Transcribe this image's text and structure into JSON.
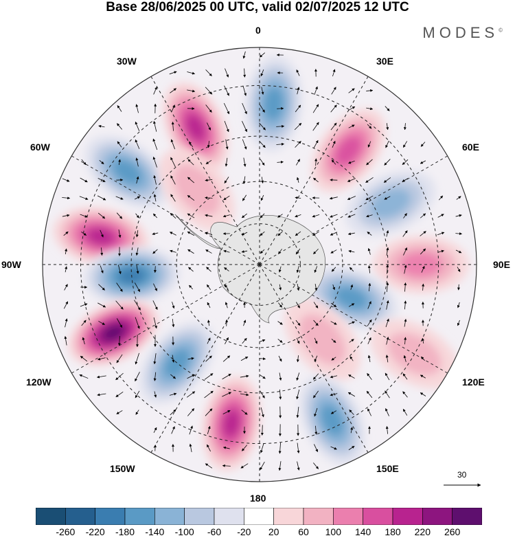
{
  "header": {
    "title": "Base 28/06/2025 00 UTC, valid 02/07/2025 12 UTC",
    "brand": "MODES",
    "brand_mark": "©"
  },
  "map": {
    "projection": "south-polar-stereographic",
    "longitude_labels": {
      "top": "0",
      "upper_left_30": "30W",
      "upper_right_30": "30E",
      "left_60": "60W",
      "right_60": "60E",
      "left_90": "90W",
      "right_90": "90E",
      "lower_left_120": "120W",
      "lower_right_120": "120E",
      "lower_left_150": "150W",
      "lower_right_150": "150E",
      "bottom": "180"
    },
    "anomaly_centers": [
      {
        "lon": -25,
        "lat": -38,
        "sign": "positive",
        "value": 180
      },
      {
        "lon": 5,
        "lat": -35,
        "sign": "negative",
        "value": -140
      },
      {
        "lon": 38,
        "lat": -40,
        "sign": "positive",
        "value": 140
      },
      {
        "lon": -55,
        "lat": -35,
        "sign": "negative",
        "value": -140
      },
      {
        "lon": -40,
        "lat": -55,
        "sign": "positive",
        "value": 60
      },
      {
        "lon": 65,
        "lat": -40,
        "sign": "negative",
        "value": -100
      },
      {
        "lon": -80,
        "lat": -35,
        "sign": "positive",
        "value": 180
      },
      {
        "lon": 90,
        "lat": -35,
        "sign": "positive",
        "value": 100
      },
      {
        "lon": -95,
        "lat": -45,
        "sign": "negative",
        "value": -180
      },
      {
        "lon": 110,
        "lat": -55,
        "sign": "negative",
        "value": -140
      },
      {
        "lon": -115,
        "lat": -35,
        "sign": "positive",
        "value": 260
      },
      {
        "lon": 140,
        "lat": -55,
        "sign": "positive",
        "value": 60
      },
      {
        "lon": -140,
        "lat": -45,
        "sign": "negative",
        "value": -140
      },
      {
        "lon": 120,
        "lat": -30,
        "sign": "positive",
        "value": 60
      },
      {
        "lon": -170,
        "lat": -35,
        "sign": "positive",
        "value": 180
      },
      {
        "lon": 155,
        "lat": -32,
        "sign": "negative",
        "value": -140
      }
    ],
    "vector_reference": {
      "label": "30",
      "value": 30
    }
  },
  "colorbar": {
    "colors": [
      "#1a4e74",
      "#255f8e",
      "#3a7db0",
      "#5a9ac5",
      "#8ab3d6",
      "#b9c8e0",
      "#dfe1ee",
      "#ffffff",
      "#f8d6d9",
      "#f2b2c2",
      "#eb7fae",
      "#d94f9f",
      "#b8238f",
      "#8d157f",
      "#5e0f6e"
    ],
    "tick_labels": [
      "-260",
      "-220",
      "-180",
      "-140",
      "-100",
      "-60",
      "-20",
      "20",
      "60",
      "100",
      "140",
      "180",
      "220",
      "260"
    ]
  }
}
